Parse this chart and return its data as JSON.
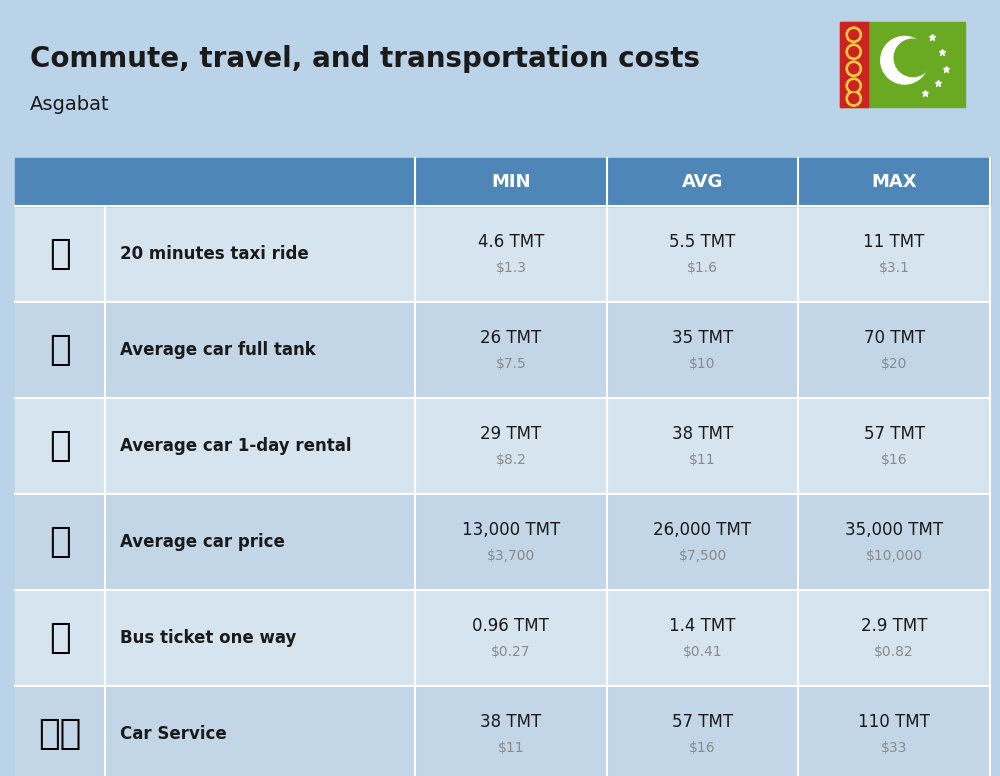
{
  "title": "Commute, travel, and transportation costs",
  "subtitle": "Asgabat",
  "background_color": "#bad3e8",
  "header_bg_color": "#4e86b8",
  "header_text_color": "#ffffff",
  "row_colors": [
    "#d6e4f0",
    "#c2d6e8"
  ],
  "col_headers": [
    "MIN",
    "AVG",
    "MAX"
  ],
  "rows": [
    {
      "label": "20 minutes taxi ride",
      "min_tmt": "4.6 TMT",
      "min_usd": "$1.3",
      "avg_tmt": "5.5 TMT",
      "avg_usd": "$1.6",
      "max_tmt": "11 TMT",
      "max_usd": "$3.1"
    },
    {
      "label": "Average car full tank",
      "min_tmt": "26 TMT",
      "min_usd": "$7.5",
      "avg_tmt": "35 TMT",
      "avg_usd": "$10",
      "max_tmt": "70 TMT",
      "max_usd": "$20"
    },
    {
      "label": "Average car 1-day rental",
      "min_tmt": "29 TMT",
      "min_usd": "$8.2",
      "avg_tmt": "38 TMT",
      "avg_usd": "$11",
      "max_tmt": "57 TMT",
      "max_usd": "$16"
    },
    {
      "label": "Average car price",
      "min_tmt": "13,000 TMT",
      "min_usd": "$3,700",
      "avg_tmt": "26,000 TMT",
      "avg_usd": "$7,500",
      "max_tmt": "35,000 TMT",
      "max_usd": "$10,000"
    },
    {
      "label": "Bus ticket one way",
      "min_tmt": "0.96 TMT",
      "min_usd": "$0.27",
      "avg_tmt": "1.4 TMT",
      "avg_usd": "$0.41",
      "max_tmt": "2.9 TMT",
      "max_usd": "$0.82"
    },
    {
      "label": "Car Service",
      "min_tmt": "38 TMT",
      "min_usd": "$11",
      "avg_tmt": "57 TMT",
      "avg_usd": "$16",
      "max_tmt": "110 TMT",
      "max_usd": "$33"
    }
  ],
  "title_fontsize": 20,
  "subtitle_fontsize": 14,
  "header_fontsize": 13,
  "label_fontsize": 12,
  "value_fontsize": 12,
  "usd_fontsize": 10,
  "usd_color": "#8a8a8a",
  "icon_texts": [
    "🚕",
    "⛽",
    "🚙",
    "🚗",
    "🚌",
    "🔧🚗"
  ]
}
